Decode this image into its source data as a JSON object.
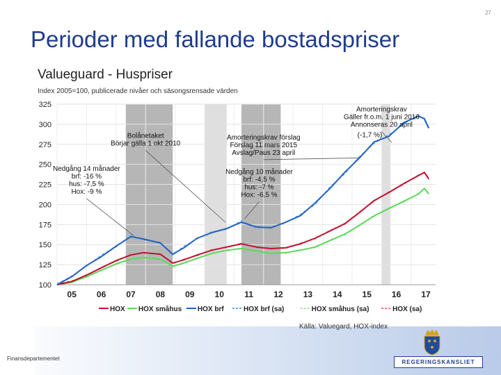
{
  "page": {
    "number": "27",
    "title": "Perioder med fallande bostadspriser",
    "source": "Källa: Valuegard, HOX-index",
    "ministry": "Finansdepartementet",
    "logo_text": "REGERINGSKANSLIET"
  },
  "chart_data": {
    "type": "line",
    "title": "Valueguard - Huspriser",
    "subtitle": "Index 2005=100, publicerade nivåer och säsongsrensade värden",
    "ylim": [
      100,
      325
    ],
    "yticks": [
      100,
      125,
      150,
      175,
      200,
      225,
      250,
      275,
      300,
      325
    ],
    "xlim": [
      2005.0,
      2017.83
    ],
    "xticks": [
      {
        "label": "05",
        "x": 2005.5
      },
      {
        "label": "06",
        "x": 2006.5
      },
      {
        "label": "07",
        "x": 2007.5
      },
      {
        "label": "08",
        "x": 2008.5
      },
      {
        "label": "09",
        "x": 2009.5
      },
      {
        "label": "10",
        "x": 2010.5
      },
      {
        "label": "11",
        "x": 2011.5
      },
      {
        "label": "12",
        "x": 2012.5
      },
      {
        "label": "13",
        "x": 2013.5
      },
      {
        "label": "14",
        "x": 2014.5
      },
      {
        "label": "15",
        "x": 2015.5
      },
      {
        "label": "16",
        "x": 2016.5
      },
      {
        "label": "17",
        "x": 2017.5
      }
    ],
    "grid": true,
    "shaded_periods": [
      {
        "from": 2007.33,
        "to": 2008.92,
        "color": "#a9a9a9"
      },
      {
        "from": 2010.0,
        "to": 2010.75,
        "color": "#d9d9d9"
      },
      {
        "from": 2011.25,
        "to": 2012.58,
        "color": "#a9a9a9"
      },
      {
        "from": 2016.0,
        "to": 2016.3,
        "color": "#d9d9d9"
      }
    ],
    "series": [
      {
        "name": "HOX",
        "color": "#c0102e",
        "style": "solid",
        "x": [
          2005.0,
          2005.5,
          2006.0,
          2006.5,
          2007.0,
          2007.5,
          2007.92,
          2008.5,
          2008.92,
          2009.3,
          2009.75,
          2010.25,
          2010.75,
          2011.25,
          2011.75,
          2012.25,
          2012.75,
          2013.25,
          2013.75,
          2014.25,
          2014.75,
          2015.25,
          2015.75,
          2016.25,
          2016.75,
          2017.25,
          2017.45,
          2017.6
        ],
        "y": [
          100,
          104,
          112,
          121,
          130,
          137,
          140,
          138,
          127,
          131,
          137,
          143,
          147,
          151,
          147,
          145,
          146,
          151,
          158,
          167,
          176,
          190,
          205,
          215,
          226,
          236,
          240,
          232
        ]
      },
      {
        "name": "HOX småhus",
        "color": "#5bd95b",
        "style": "solid",
        "x": [
          2005.0,
          2005.5,
          2006.0,
          2006.5,
          2007.0,
          2007.5,
          2007.92,
          2008.5,
          2008.92,
          2009.3,
          2009.75,
          2010.25,
          2010.75,
          2011.25,
          2011.75,
          2012.25,
          2012.75,
          2013.25,
          2013.75,
          2014.25,
          2014.75,
          2015.25,
          2015.75,
          2016.25,
          2016.75,
          2017.25,
          2017.45,
          2017.6
        ],
        "y": [
          100,
          103,
          110,
          118,
          126,
          132,
          134,
          132,
          123,
          127,
          133,
          139,
          143,
          145,
          142,
          139,
          140,
          143,
          147,
          155,
          163,
          174,
          186,
          195,
          204,
          213,
          220,
          213
        ]
      },
      {
        "name": "HOX brf",
        "color": "#2060c8",
        "style": "solid",
        "x": [
          2005.0,
          2005.5,
          2006.0,
          2006.5,
          2007.0,
          2007.5,
          2007.92,
          2008.5,
          2008.92,
          2009.3,
          2009.75,
          2010.25,
          2010.75,
          2011.25,
          2011.75,
          2012.25,
          2012.75,
          2013.25,
          2013.75,
          2014.25,
          2014.75,
          2015.25,
          2015.75,
          2016.25,
          2016.75,
          2017.25,
          2017.45,
          2017.6
        ],
        "y": [
          100,
          110,
          124,
          135,
          148,
          160,
          157,
          152,
          138,
          146,
          158,
          165,
          170,
          178,
          172,
          171,
          178,
          186,
          202,
          220,
          240,
          258,
          278,
          285,
          302,
          310,
          307,
          295
        ]
      },
      {
        "name": "HOX brf (sa)",
        "color": "#5fa8e8",
        "style": "dashed",
        "x": [
          2005.0,
          2005.5,
          2006.0,
          2006.5,
          2007.0,
          2007.5,
          2007.92,
          2008.5,
          2008.92,
          2009.3,
          2009.75,
          2010.25,
          2010.75,
          2011.25,
          2011.75,
          2012.25,
          2012.75,
          2013.25,
          2013.75,
          2014.25,
          2014.75,
          2015.25,
          2015.75,
          2016.25,
          2016.75,
          2017.25,
          2017.45,
          2017.6
        ],
        "y": [
          101,
          111,
          123,
          137,
          147,
          162,
          156,
          153,
          137,
          148,
          157,
          166,
          169,
          180,
          171,
          172,
          177,
          188,
          200,
          222,
          238,
          260,
          276,
          287,
          300,
          312,
          305,
          294
        ]
      },
      {
        "name": "HOX småhus (sa)",
        "color": "#a8e8a0",
        "style": "dashed",
        "x": [
          2005.0,
          2005.5,
          2006.0,
          2006.5,
          2007.0,
          2007.5,
          2007.92,
          2008.5,
          2008.92,
          2009.3,
          2009.75,
          2010.25,
          2010.75,
          2011.25,
          2011.75,
          2012.25,
          2012.75,
          2013.25,
          2013.75,
          2014.25,
          2014.75,
          2015.25,
          2015.75,
          2016.25,
          2016.75,
          2017.25,
          2017.45,
          2017.6
        ],
        "y": [
          101,
          104,
          109,
          119,
          125,
          133,
          133,
          133,
          122,
          128,
          132,
          140,
          142,
          146,
          141,
          140,
          139,
          144,
          146,
          156,
          162,
          175,
          185,
          196,
          203,
          214,
          219,
          214
        ]
      },
      {
        "name": "HOX (sa)",
        "color": "#e87878",
        "style": "dashed",
        "x": [
          2005.0,
          2005.5,
          2006.0,
          2006.5,
          2007.0,
          2007.5,
          2007.92,
          2008.5,
          2008.92,
          2009.3,
          2009.75,
          2010.25,
          2010.75,
          2011.25,
          2011.75,
          2012.25,
          2012.75,
          2013.25,
          2013.75,
          2014.25,
          2014.75,
          2015.25,
          2015.75,
          2016.25,
          2016.75,
          2017.25,
          2017.45,
          2017.6
        ],
        "y": [
          101,
          105,
          111,
          122,
          129,
          138,
          139,
          139,
          126,
          132,
          136,
          144,
          146,
          152,
          146,
          146,
          145,
          152,
          157,
          168,
          175,
          191,
          204,
          216,
          225,
          237,
          239,
          231
        ]
      }
    ],
    "annotations": [
      {
        "lines": [
          "Amorteringskrav",
          "Gäller fr.o.m. 1 juni 2016",
          "Annonseras 20 april"
        ],
        "x": 2016.0,
        "y": 316,
        "anchor": "middle",
        "arrow_to": [
          2016.35,
          277
        ]
      },
      {
        "lines": [
          "(-1,7 %)"
        ],
        "x": 2015.6,
        "y": 284,
        "anchor": "middle"
      },
      {
        "lines": [
          "Bolånetaket",
          "Börjar gälla 1 okt 2010"
        ],
        "x": 2008.0,
        "y": 283,
        "anchor": "middle",
        "arrow_to": [
          2010.7,
          178
        ]
      },
      {
        "lines": [
          "Amorteringskrav förslag",
          "Förslag 11 mars 2015",
          "Avslag/Paus 23 april"
        ],
        "x": 2012.0,
        "y": 281,
        "anchor": "middle",
        "arrow_to": [
          2015.25,
          258
        ]
      },
      {
        "lines": [
          "Nedgång 14 månader",
          "brf: -16 %",
          "hus: -7,5 %",
          "Hox: -9 %"
        ],
        "x": 2006.0,
        "y": 242,
        "anchor": "middle",
        "arrow_to": [
          2007.6,
          161
        ]
      },
      {
        "lines": [
          "Nedgång 10 månader",
          "brf: -4,5 %",
          "hus: -7 %",
          "Hox: -6,5 %"
        ],
        "x": 2011.85,
        "y": 238,
        "anchor": "middle",
        "arrow_to": [
          2011.35,
          182
        ]
      }
    ]
  }
}
